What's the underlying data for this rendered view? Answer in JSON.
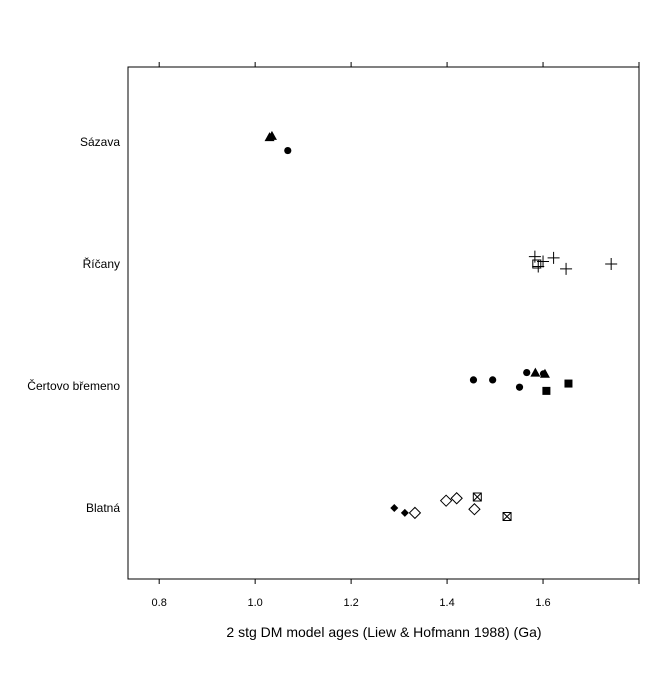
{
  "chart_data": {
    "type": "scatter",
    "title": "",
    "xlabel": "2 stg DM model ages (Liew & Hofmann 1988) (Ga)",
    "ylabel": "",
    "xlim": [
      0.735,
      1.8
    ],
    "x_ticks": [
      0.8,
      1.0,
      1.2,
      1.4,
      1.6,
      1.8
    ],
    "x_tick_labels": [
      "0.8",
      "1.0",
      "1.2",
      "1.4",
      "1.6",
      ""
    ],
    "categories": [
      "Blatná",
      "Čertovo břemeno",
      "Říčany",
      "Sázava"
    ],
    "grid": false,
    "points": [
      {
        "category": "Sázava",
        "x": 1.03,
        "jitter": 0.04,
        "marker": "triangle"
      },
      {
        "category": "Sázava",
        "x": 1.035,
        "jitter": 0.05,
        "marker": "triangle"
      },
      {
        "category": "Sázava",
        "x": 1.068,
        "jitter": -0.07,
        "marker": "circle"
      },
      {
        "category": "Říčany",
        "x": 1.583,
        "jitter": 0.06,
        "marker": "plus"
      },
      {
        "category": "Říčany",
        "x": 1.587,
        "jitter": 0.0,
        "marker": "square-open"
      },
      {
        "category": "Říčany",
        "x": 1.59,
        "jitter": -0.02,
        "marker": "plus"
      },
      {
        "category": "Říčany",
        "x": 1.6,
        "jitter": 0.02,
        "marker": "plus"
      },
      {
        "category": "Říčany",
        "x": 1.622,
        "jitter": 0.05,
        "marker": "plus"
      },
      {
        "category": "Říčany",
        "x": 1.648,
        "jitter": -0.04,
        "marker": "plus"
      },
      {
        "category": "Říčany",
        "x": 1.742,
        "jitter": 0.0,
        "marker": "plus"
      },
      {
        "category": "Čertovo břemeno",
        "x": 1.455,
        "jitter": 0.05,
        "marker": "circle"
      },
      {
        "category": "Čertovo břemeno",
        "x": 1.495,
        "jitter": 0.05,
        "marker": "circle"
      },
      {
        "category": "Čertovo břemeno",
        "x": 1.551,
        "jitter": -0.01,
        "marker": "circle"
      },
      {
        "category": "Čertovo břemeno",
        "x": 1.566,
        "jitter": 0.11,
        "marker": "circle"
      },
      {
        "category": "Čertovo břemeno",
        "x": 1.584,
        "jitter": 0.11,
        "marker": "triangle"
      },
      {
        "category": "Čertovo břemeno",
        "x": 1.601,
        "jitter": 0.1,
        "marker": "circle"
      },
      {
        "category": "Čertovo břemeno",
        "x": 1.604,
        "jitter": 0.1,
        "marker": "triangle"
      },
      {
        "category": "Čertovo břemeno",
        "x": 1.607,
        "jitter": -0.04,
        "marker": "square"
      },
      {
        "category": "Čertovo břemeno",
        "x": 1.653,
        "jitter": 0.02,
        "marker": "square"
      },
      {
        "category": "Blatná",
        "x": 1.29,
        "jitter": 0.0,
        "marker": "diamond"
      },
      {
        "category": "Blatná",
        "x": 1.312,
        "jitter": -0.04,
        "marker": "diamond"
      },
      {
        "category": "Blatná",
        "x": 1.333,
        "jitter": -0.04,
        "marker": "diamond-open"
      },
      {
        "category": "Blatná",
        "x": 1.398,
        "jitter": 0.06,
        "marker": "diamond-open"
      },
      {
        "category": "Blatná",
        "x": 1.42,
        "jitter": 0.08,
        "marker": "diamond-open"
      },
      {
        "category": "Blatná",
        "x": 1.457,
        "jitter": -0.01,
        "marker": "diamond-open"
      },
      {
        "category": "Blatná",
        "x": 1.463,
        "jitter": 0.09,
        "marker": "square-x"
      },
      {
        "category": "Blatná",
        "x": 1.525,
        "jitter": -0.07,
        "marker": "square-x"
      }
    ]
  }
}
